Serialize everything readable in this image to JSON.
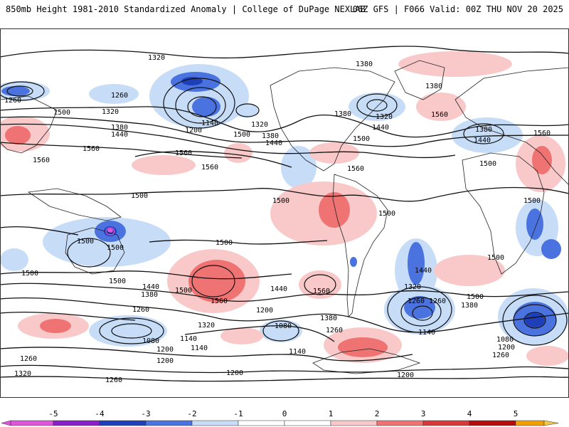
{
  "header": {
    "title_left": "850mb Height 1981-2010 Standardized Anomaly | College of DuPage NEXLAB",
    "title_right": "06Z GFS | F066 Valid: 00Z THU NOV 20 2025"
  },
  "colors": {
    "neg5": "#dd55dd",
    "neg4": "#8a1fc9",
    "neg3": "#1f3fb8",
    "neg2": "#4a73e0",
    "neg1": "#c6dcf7",
    "zero": "#ffffff",
    "pos1": "#f9c9c9",
    "pos2": "#ef7373",
    "pos3": "#d63a3a",
    "pos4": "#b50d0d",
    "pos5": "#f0a000",
    "pos6": "#f2c94c"
  },
  "colorbar": {
    "ticks": [
      "-5",
      "-4",
      "-3",
      "-2",
      "-1",
      "0",
      "1",
      "2",
      "3",
      "4",
      "5"
    ]
  },
  "contour_labels": [
    "1320",
    "1260",
    "1500",
    "1320",
    "1380",
    "1440",
    "1560",
    "1560",
    "1260",
    "1140",
    "1200",
    "1320",
    "1380",
    "1440",
    "1500",
    "1560",
    "1560",
    "1380",
    "1380",
    "1380",
    "1320",
    "1440",
    "1500",
    "1560",
    "1560",
    "1380",
    "1440",
    "1500",
    "1560",
    "1500",
    "1500",
    "1500",
    "1500",
    "1500",
    "1500",
    "1500",
    "1500",
    "1500",
    "1500",
    "1440",
    "1380",
    "1500",
    "1560",
    "1440",
    "1560",
    "1200",
    "1080",
    "1200",
    "1380",
    "1320",
    "1260",
    "1140",
    "1080",
    "1200",
    "1140",
    "1260",
    "1320",
    "1200",
    "1260",
    "1140",
    "1200",
    "1260",
    "1320",
    "1380",
    "1440",
    "1500",
    "1080",
    "1200",
    "1140",
    "1260",
    "1260",
    "1260"
  ]
}
